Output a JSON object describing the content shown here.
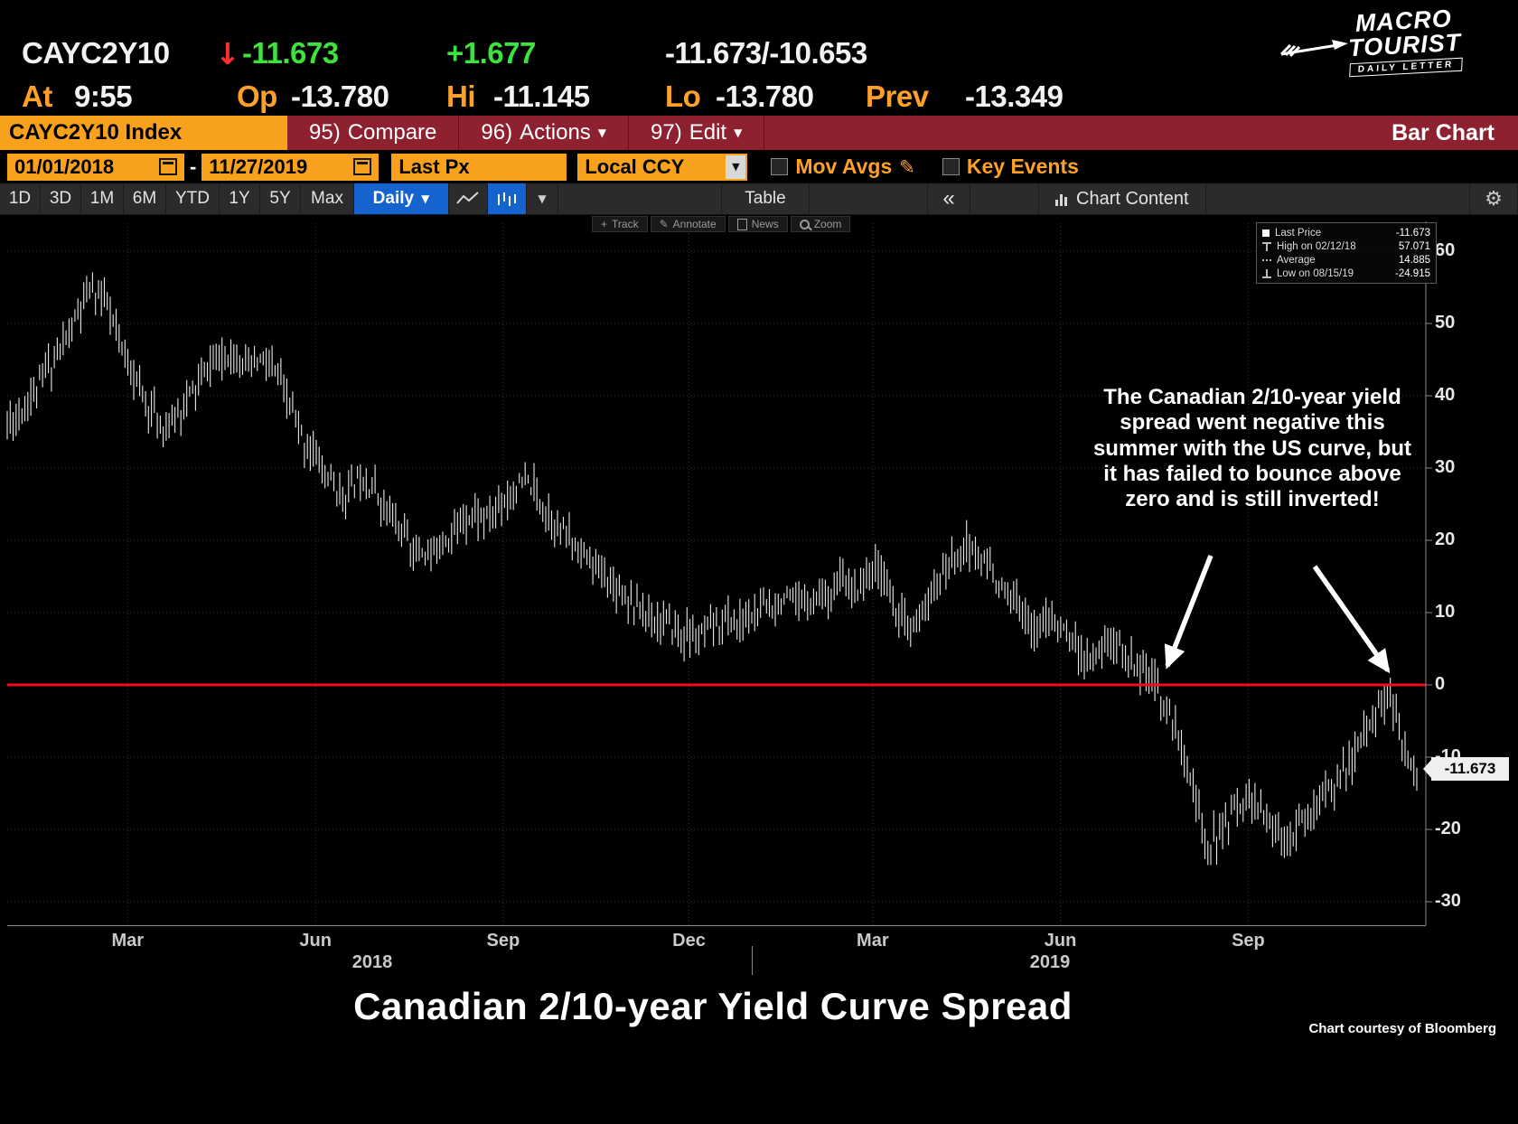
{
  "header": {
    "ticker": "CAYC2Y10",
    "down_arrow": "↓",
    "last": "-11.673",
    "change": "+1.677",
    "bid_ask": "-11.673/-10.653",
    "at_label": "At",
    "time": "9:55",
    "open_label": "Op",
    "open": "-13.780",
    "high_label": "Hi",
    "high": "-11.145",
    "low_label": "Lo",
    "low": "-13.780",
    "prev_label": "Prev",
    "prev": "-13.349"
  },
  "logo": {
    "line1": "MACRO",
    "line2": "TOURIST",
    "banner": "DAILY LETTER"
  },
  "menubar": {
    "security": "CAYC2Y10 Index",
    "compare_num": "95)",
    "compare": "Compare",
    "actions_num": "96)",
    "actions": "Actions",
    "edit_num": "97)",
    "edit": "Edit",
    "chart_type": "Bar Chart"
  },
  "controls": {
    "date_from": "01/01/2018",
    "date_sep": "-",
    "date_to": "11/27/2019",
    "price_type": "Last Px",
    "currency": "Local CCY",
    "mov_avgs": "Mov Avgs",
    "key_events": "Key Events"
  },
  "toolbar": {
    "periods": [
      "1D",
      "3D",
      "1M",
      "6M",
      "YTD",
      "1Y",
      "5Y",
      "Max"
    ],
    "frequency": "Daily",
    "table": "Table",
    "collapse": "«",
    "chart_content": "Chart Content"
  },
  "chart_tools": {
    "track": "Track",
    "annotate": "Annotate",
    "news": "News",
    "zoom": "Zoom"
  },
  "legend": {
    "rows": [
      {
        "label": "Last Price",
        "value": "-11.673"
      },
      {
        "label": "High on 02/12/18",
        "value": "57.071"
      },
      {
        "label": "Average",
        "value": "14.885"
      },
      {
        "label": "Low on 08/15/19",
        "value": "-24.915"
      }
    ]
  },
  "annotation": "The Canadian 2/10-year yield spread went negative this summer with the US curve, but it has failed to bounce above zero and is still inverted!",
  "price_tag": "-11.673",
  "footer": {
    "title": "Canadian 2/10-year Yield Curve Spread",
    "credit": "Chart courtesy of Bloomberg"
  },
  "chart_data": {
    "type": "bar",
    "title": "CAYC2Y10 Index — Canadian 2/10-year yield curve spread",
    "x_range": [
      "01/01/2018",
      "11/27/2019"
    ],
    "ylim": [
      -33,
      62
    ],
    "yticks": [
      60,
      50,
      40,
      30,
      20,
      10,
      0,
      -10,
      -20,
      -30
    ],
    "x_month_labels": [
      "Mar",
      "Jun",
      "Sep",
      "Dec",
      "Mar",
      "Jun",
      "Sep"
    ],
    "x_year_labels": [
      "2018",
      "2019"
    ],
    "zero_line": 0,
    "stats": {
      "last": -11.673,
      "high": 57.071,
      "high_date": "02/12/18",
      "average": 14.885,
      "low": -24.915,
      "low_date": "08/15/19"
    },
    "weekly_values": [
      36,
      38,
      41,
      44,
      47,
      51,
      55,
      53,
      47,
      43,
      39,
      35,
      37,
      40,
      43,
      45,
      46,
      44,
      45,
      43,
      39,
      34,
      31,
      28,
      26,
      29,
      27,
      24,
      21,
      19,
      18,
      20,
      22,
      24,
      23,
      25,
      27,
      28,
      25,
      22,
      20,
      18,
      16,
      14,
      12,
      10,
      9,
      8,
      7,
      6,
      8,
      9,
      8,
      10,
      11,
      12,
      11,
      12,
      13,
      14,
      13,
      15,
      16,
      11,
      7,
      10,
      14,
      17,
      19,
      18,
      15,
      12,
      10,
      8,
      9,
      7,
      5,
      4,
      6,
      5,
      3,
      1,
      -2,
      -7,
      -13,
      -22,
      -21,
      -17,
      -15,
      -18,
      -20,
      -21,
      -19,
      -16,
      -14,
      -12,
      -8,
      -4,
      -1,
      -9,
      -11.7
    ]
  }
}
